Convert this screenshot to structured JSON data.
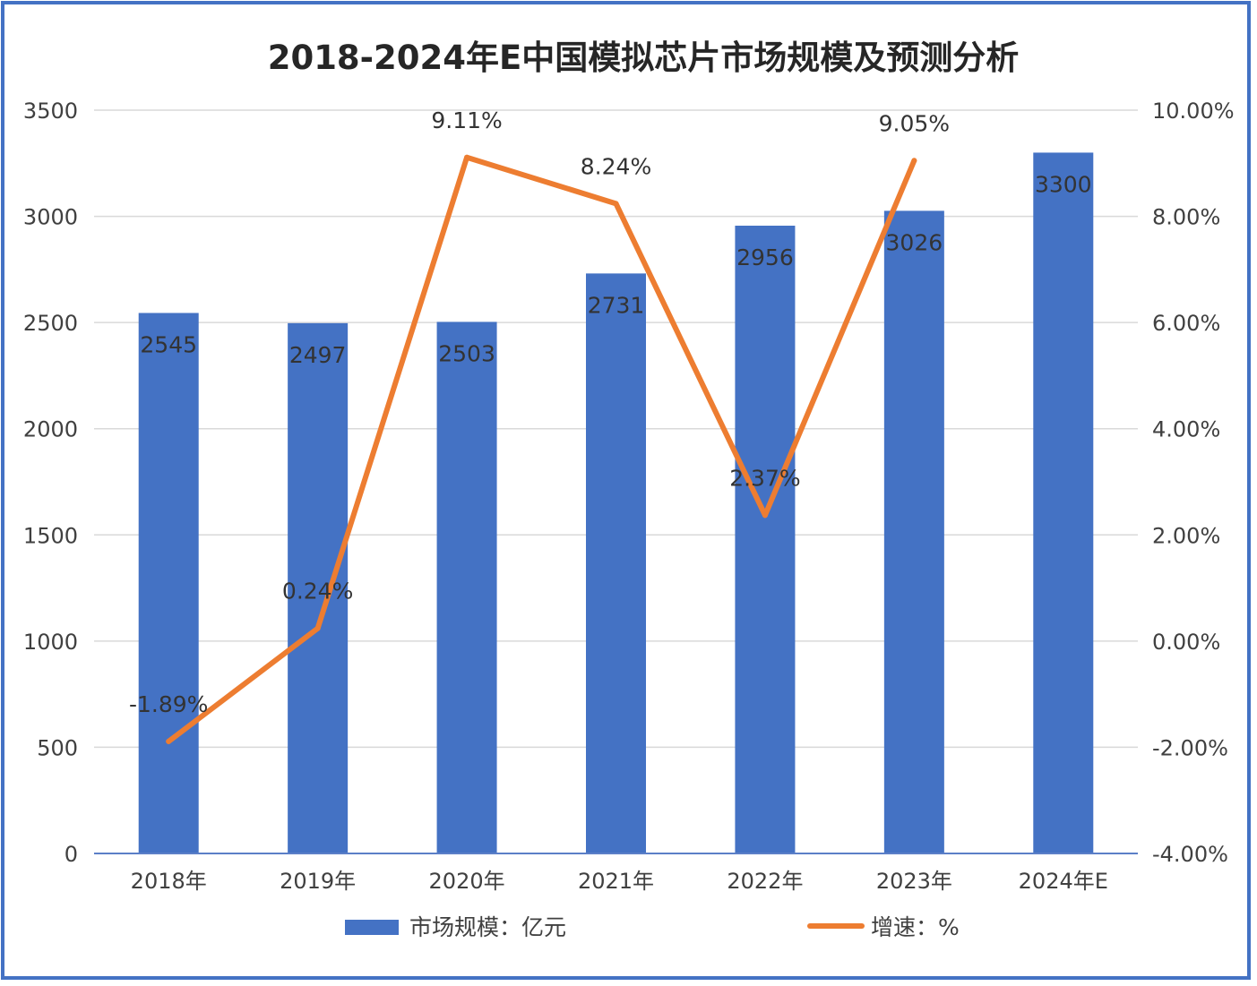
{
  "chart_data": {
    "type": "bar",
    "title": "2018-2024年E中国模拟芯片市场规模及预测分析",
    "categories": [
      "2018年",
      "2019年",
      "2020年",
      "2021年",
      "2022年",
      "2023年",
      "2024年E"
    ],
    "series": [
      {
        "name": "市场规模：亿元",
        "type": "bar",
        "axis": "left",
        "color": "#4472C4",
        "values": [
          2545,
          2497,
          2503,
          2731,
          2956,
          3026,
          3300
        ],
        "labels": [
          "2545",
          "2497",
          "2503",
          "2731",
          "2956",
          "3026",
          "3300"
        ]
      },
      {
        "name": "增速：%",
        "type": "line",
        "axis": "right",
        "color": "#ED7D31",
        "values": [
          -1.89,
          0.24,
          9.11,
          8.24,
          2.37,
          9.05,
          null
        ],
        "labels": [
          "-1.89%",
          "0.24%",
          "9.11%",
          "8.24%",
          "2.37%",
          "9.05%",
          ""
        ]
      }
    ],
    "y_left": {
      "range": [
        0,
        3500
      ],
      "ticks": [
        0,
        500,
        1000,
        1500,
        2000,
        2500,
        3000,
        3500
      ],
      "tick_labels": [
        "0",
        "500",
        "1000",
        "1500",
        "2000",
        "2500",
        "3000",
        "3500"
      ]
    },
    "y_right": {
      "range": [
        -4,
        10
      ],
      "ticks": [
        -4,
        -2,
        0,
        2,
        4,
        6,
        8,
        10
      ],
      "tick_labels": [
        "-4.00%",
        "-2.00%",
        "0.00%",
        "2.00%",
        "4.00%",
        "6.00%",
        "8.00%",
        "10.00%"
      ]
    },
    "grid": true,
    "legend_position": "bottom",
    "frame_color": "#4472C4",
    "grid_color": "#D9D9D9",
    "text_color": "#404040"
  }
}
